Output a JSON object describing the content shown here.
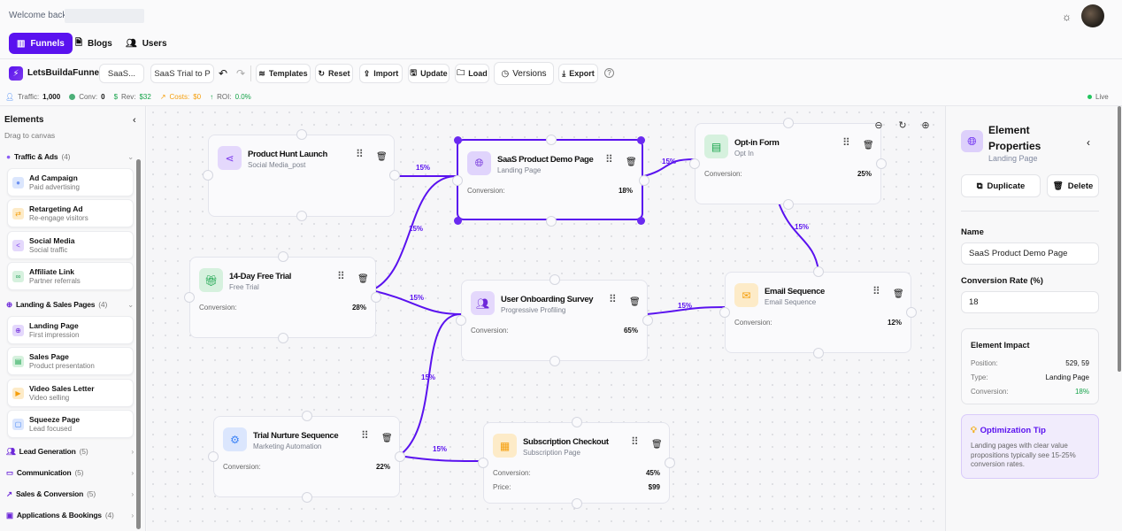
{
  "header": {
    "welcome": "Welcome back,",
    "tabs": [
      {
        "label": "Funnels",
        "icon": "bar-chart-icon"
      },
      {
        "label": "Blogs",
        "icon": "document-icon"
      },
      {
        "label": "Users",
        "icon": "users-icon"
      }
    ]
  },
  "toolbar": {
    "brand": "LetsBuildaFunnel",
    "funnel_select": "SaaS...",
    "funnel_name": "SaaS Trial to P",
    "templates": "Templates",
    "reset": "Reset",
    "import": "Import",
    "update": "Update",
    "load": "Load",
    "versions": "Versions",
    "export": "Export"
  },
  "stats": {
    "traffic_label": "Traffic:",
    "traffic": "1,000",
    "conv_label": "Conv:",
    "conv": "0",
    "rev_label": "Rev:",
    "rev": "$32",
    "costs_label": "Costs:",
    "costs": "$0",
    "roi_label": "ROI:",
    "roi": "0.0%",
    "live": "Live"
  },
  "sidebar": {
    "title": "Elements",
    "subtitle": "Drag to canvas",
    "groups": [
      {
        "label": "Traffic & Ads",
        "count": "(4)",
        "expanded": true,
        "items": [
          {
            "title": "Ad Campaign",
            "sub": "Paid advertising"
          },
          {
            "title": "Retargeting Ad",
            "sub": "Re-engage visitors"
          },
          {
            "title": "Social Media",
            "sub": "Social traffic"
          },
          {
            "title": "Affiliate Link",
            "sub": "Partner referrals"
          }
        ]
      },
      {
        "label": "Landing & Sales Pages",
        "count": "(4)",
        "expanded": true,
        "items": [
          {
            "title": "Landing Page",
            "sub": "First impression"
          },
          {
            "title": "Sales Page",
            "sub": "Product presentation"
          },
          {
            "title": "Video Sales Letter",
            "sub": "Video selling"
          },
          {
            "title": "Squeeze Page",
            "sub": "Lead focused"
          }
        ]
      },
      {
        "label": "Lead Generation",
        "count": "(5)",
        "expanded": false
      },
      {
        "label": "Communication",
        "count": "(5)",
        "expanded": false
      },
      {
        "label": "Sales & Conversion",
        "count": "(5)",
        "expanded": false
      },
      {
        "label": "Applications & Bookings",
        "count": "(4)",
        "expanded": false
      }
    ]
  },
  "canvas": {
    "conversion_label": "Conversion:",
    "price_label": "Price:",
    "nodes": [
      {
        "title": "Product Hunt Launch",
        "sub": "Social Media_post",
        "icon": "share-icon"
      },
      {
        "title": "SaaS Product Demo Page",
        "sub": "Landing Page",
        "icon": "globe-icon",
        "conversion": "18%",
        "selected": true
      },
      {
        "title": "Opt-in Form",
        "sub": "Opt In",
        "icon": "form-icon",
        "conversion": "25%"
      },
      {
        "title": "14-Day Free Trial",
        "sub": "Free Trial",
        "icon": "gift-icon",
        "conversion": "28%"
      },
      {
        "title": "User Onboarding Survey",
        "sub": "Progressive Profiling",
        "icon": "users-icon",
        "conversion": "65%"
      },
      {
        "title": "Email Sequence",
        "sub": "Email Sequence",
        "icon": "mail-icon",
        "conversion": "12%"
      },
      {
        "title": "Trial Nurture Sequence",
        "sub": "Marketing Automation",
        "icon": "gear-icon",
        "conversion": "22%"
      },
      {
        "title": "Subscription Checkout",
        "sub": "Subscription Page",
        "icon": "calendar-icon",
        "conversion": "45%",
        "price": "$99"
      }
    ],
    "edges": [
      {
        "from": "Product Hunt Launch",
        "to": "SaaS Product Demo Page",
        "label": "15%"
      },
      {
        "from": "14-Day Free Trial",
        "to": "SaaS Product Demo Page",
        "label": "15%"
      },
      {
        "from": "14-Day Free Trial",
        "to": "User Onboarding Survey",
        "label": "15%"
      },
      {
        "from": "Trial Nurture Sequence",
        "to": "User Onboarding Survey",
        "label": "15%"
      },
      {
        "from": "Trial Nurture Sequence",
        "to": "Subscription Checkout",
        "label": "15%"
      },
      {
        "from": "SaaS Product Demo Page",
        "to": "Opt-in Form",
        "label": "15%"
      },
      {
        "from": "Opt-in Form",
        "to": "Email Sequence",
        "label": "15%"
      },
      {
        "from": "User Onboarding Survey",
        "to": "Email Sequence",
        "label": "15%"
      }
    ]
  },
  "panel": {
    "title": "Element Properties",
    "subtitle": "Landing Page",
    "duplicate": "Duplicate",
    "delete": "Delete",
    "name_label": "Name",
    "name_value": "SaaS Product Demo Page",
    "rate_label": "Conversion Rate (%)",
    "rate_value": "18",
    "impact": {
      "title": "Element Impact",
      "position_label": "Position:",
      "position": "529, 59",
      "type_label": "Type:",
      "type": "Landing Page",
      "conversion_label": "Conversion:",
      "conversion": "18%"
    },
    "tip": {
      "title": "Optimization Tip",
      "text": "Landing pages with clear value propositions typically see 15-25% conversion rates."
    }
  },
  "colors": {
    "accent": "#5a12ef",
    "positive": "#16a34a",
    "warning": "#f59e0b"
  }
}
